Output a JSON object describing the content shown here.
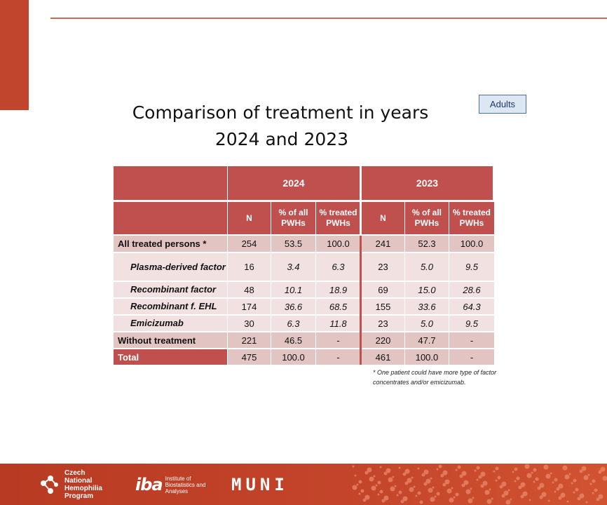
{
  "title": {
    "line1": "Comparison of treatment in years",
    "line2": "2024 and 2023"
  },
  "badge": "Adults",
  "table": {
    "years": [
      "2024",
      "2023"
    ],
    "sub_headers": [
      "N",
      "% of all PWHs",
      "% treated PWHs"
    ],
    "rows": [
      {
        "label": "All treated persons *",
        "y2024": [
          "254",
          "53.5",
          "100.0"
        ],
        "y2023": [
          "241",
          "52.3",
          "100.0"
        ]
      },
      {
        "label": "Plasma-derived factor",
        "y2024": [
          "16",
          "3.4",
          "6.3"
        ],
        "y2023": [
          "23",
          "5.0",
          "9.5"
        ]
      },
      {
        "label": "Recombinant factor",
        "y2024": [
          "48",
          "10.1",
          "18.9"
        ],
        "y2023": [
          "69",
          "15.0",
          "28.6"
        ]
      },
      {
        "label": "Recombinant f. EHL",
        "y2024": [
          "174",
          "36.6",
          "68.5"
        ],
        "y2023": [
          "155",
          "33.6",
          "64.3"
        ]
      },
      {
        "label": "Emicizumab",
        "y2024": [
          "30",
          "6.3",
          "11.8"
        ],
        "y2023": [
          "23",
          "5.0",
          "9.5"
        ]
      },
      {
        "label": "Without treatment",
        "y2024": [
          "221",
          "46.5",
          "-"
        ],
        "y2023": [
          "220",
          "47.7",
          "-"
        ]
      },
      {
        "label": "Total",
        "y2024": [
          "475",
          "100.0",
          "-"
        ],
        "y2023": [
          "461",
          "100.0",
          "-"
        ]
      }
    ]
  },
  "footnote": "* One patient could have more type of factor concentrates and/or emicizumab.",
  "footer": {
    "logo1": "Czech National Hemophilia Program",
    "logo2_mark": "iba",
    "logo2": "Institute of Biostatistics and Analyses",
    "logo3": "MUNI",
    "colors": {
      "brand": "#c0452c",
      "table_header": "#c0504d"
    }
  }
}
